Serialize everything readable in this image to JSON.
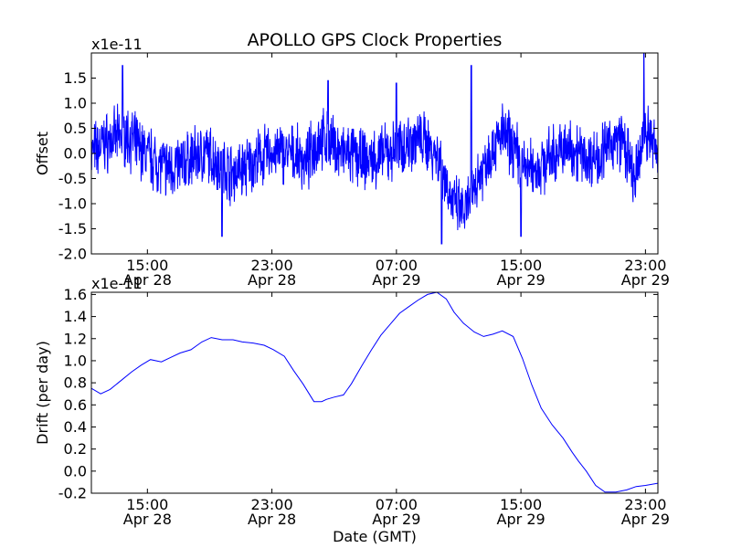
{
  "chart_data": [
    {
      "type": "line",
      "title": "APOLLO GPS Clock Properties",
      "ylabel": "Offset",
      "xlabel": "",
      "y_scale_label": "x1e-11",
      "ylim": [
        -2.0,
        2.0
      ],
      "y_ticks": [
        "-2.0",
        "-1.5",
        "-1.0",
        "-0.5",
        "0.0",
        "0.5",
        "1.0",
        "1.5"
      ],
      "y_tick_values": [
        -2.0,
        -1.5,
        -1.0,
        -0.5,
        0.0,
        0.5,
        1.0,
        1.5
      ],
      "x_ticks": [
        {
          "time": "15:00",
          "date": "Apr 28",
          "hour": 15
        },
        {
          "time": "23:00",
          "date": "Apr 28",
          "hour": 23
        },
        {
          "time": "07:00",
          "date": "Apr 29",
          "hour": 31
        },
        {
          "time": "15:00",
          "date": "Apr 29",
          "hour": 39
        },
        {
          "time": "23:00",
          "date": "Apr 29",
          "hour": 47
        }
      ],
      "xlim_hours": [
        11.4,
        47.8
      ],
      "series_color": "#0000ff",
      "grid": false,
      "series": [
        {
          "hours": [
            11.4,
            12.2,
            13.0,
            13.7,
            14.5,
            15.3,
            16.2,
            17.0,
            17.8,
            18.7,
            19.5,
            20.4,
            21.2,
            22.0,
            22.8,
            23.7,
            24.5,
            25.2,
            26.0,
            26.8,
            27.5,
            28.3,
            29.0,
            29.8,
            30.5,
            31.4,
            32.2,
            33.0,
            33.8,
            34.6,
            35.4,
            36.2,
            37.0,
            37.8,
            38.6,
            39.3,
            40.1,
            40.8,
            41.6,
            42.4,
            43.2,
            44.0,
            44.8,
            45.5,
            46.3,
            47.0,
            47.8
          ],
          "values": [
            0.0,
            0.2,
            0.3,
            0.35,
            0.1,
            -0.1,
            -0.3,
            -0.25,
            -0.1,
            0.0,
            -0.15,
            -0.4,
            -0.3,
            -0.15,
            0.0,
            0.0,
            -0.05,
            -0.2,
            0.3,
            0.2,
            0.0,
            -0.05,
            -0.15,
            -0.1,
            0.0,
            0.15,
            0.3,
            0.2,
            -0.1,
            -1.0,
            -1.2,
            -0.5,
            0.0,
            0.4,
            0.1,
            -0.3,
            -0.3,
            -0.1,
            0.05,
            0.1,
            -0.1,
            -0.05,
            0.2,
            0.3,
            -0.6,
            0.5,
            0.0
          ],
          "extremes": [
            {
              "hour": 13.4,
              "value": 1.75
            },
            {
              "hour": 19.8,
              "value": -1.65
            },
            {
              "hour": 26.6,
              "value": 1.45
            },
            {
              "hour": 31.0,
              "value": 1.4
            },
            {
              "hour": 33.9,
              "value": -1.8
            },
            {
              "hour": 35.8,
              "value": 1.75
            },
            {
              "hour": 39.0,
              "value": -1.65
            },
            {
              "hour": 46.9,
              "value": 2.0
            }
          ]
        }
      ]
    },
    {
      "type": "line",
      "title": "",
      "ylabel": "Drift (per day)",
      "xlabel": "Date (GMT)",
      "y_scale_label": "x1e-11",
      "ylim": [
        -0.2,
        1.62
      ],
      "y_ticks": [
        "-0.2",
        "0.0",
        "0.2",
        "0.4",
        "0.6",
        "0.8",
        "1.0",
        "1.2",
        "1.4",
        "1.6"
      ],
      "y_tick_values": [
        -0.2,
        0.0,
        0.2,
        0.4,
        0.6,
        0.8,
        1.0,
        1.2,
        1.4,
        1.6
      ],
      "x_ticks": [
        {
          "time": "15:00",
          "date": "Apr 28",
          "hour": 15
        },
        {
          "time": "23:00",
          "date": "Apr 28",
          "hour": 23
        },
        {
          "time": "07:00",
          "date": "Apr 29",
          "hour": 31
        },
        {
          "time": "15:00",
          "date": "Apr 29",
          "hour": 39
        },
        {
          "time": "23:00",
          "date": "Apr 29",
          "hour": 47
        }
      ],
      "xlim_hours": [
        11.4,
        47.8
      ],
      "series_color": "#0000ff",
      "grid": false,
      "series": [
        {
          "hours": [
            11.4,
            12.0,
            12.6,
            13.3,
            14.0,
            14.6,
            15.2,
            15.9,
            16.5,
            17.1,
            17.8,
            18.5,
            19.1,
            19.8,
            20.5,
            21.1,
            21.8,
            22.5,
            23.1,
            23.8,
            24.4,
            25.0,
            25.7,
            26.2,
            26.5,
            27.0,
            27.6,
            28.1,
            28.8,
            29.4,
            30.0,
            30.6,
            31.2,
            31.8,
            32.4,
            33.0,
            33.6,
            34.2,
            34.7,
            35.3,
            36.0,
            36.6,
            37.2,
            37.8,
            38.5,
            39.1,
            39.7,
            40.3,
            41.0,
            41.7,
            42.3,
            42.7,
            43.2,
            43.8,
            44.4,
            45.1,
            45.8,
            46.4,
            47.0,
            47.8
          ],
          "values": [
            0.75,
            0.7,
            0.74,
            0.82,
            0.9,
            0.96,
            1.01,
            0.99,
            1.03,
            1.07,
            1.1,
            1.17,
            1.21,
            1.19,
            1.19,
            1.17,
            1.16,
            1.14,
            1.1,
            1.04,
            0.91,
            0.79,
            0.63,
            0.63,
            0.65,
            0.67,
            0.69,
            0.79,
            0.96,
            1.1,
            1.23,
            1.33,
            1.43,
            1.49,
            1.55,
            1.6,
            1.62,
            1.56,
            1.44,
            1.34,
            1.26,
            1.22,
            1.24,
            1.27,
            1.22,
            1.02,
            0.78,
            0.57,
            0.42,
            0.3,
            0.17,
            0.09,
            0.0,
            -0.13,
            -0.19,
            -0.19,
            -0.17,
            -0.14,
            -0.13,
            -0.11
          ]
        }
      ]
    }
  ]
}
